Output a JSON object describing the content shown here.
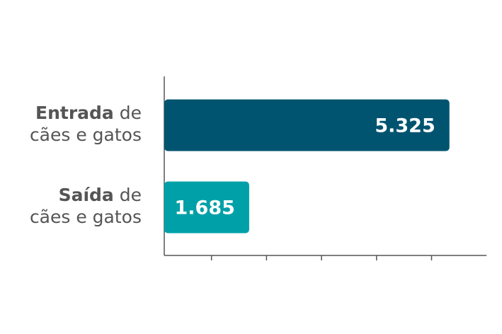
{
  "chart_data": {
    "type": "hbar",
    "categories": [
      "Entrada de cães e gatos",
      "Saída de cães e gatos"
    ],
    "values": [
      5325,
      1685
    ],
    "value_labels": [
      "5.325",
      "1.685"
    ],
    "colors": [
      "#005470",
      "#00a0a8"
    ],
    "xlim": [
      0,
      6000
    ],
    "xticks": [
      1000,
      2000,
      3000,
      4000,
      5000
    ]
  }
}
